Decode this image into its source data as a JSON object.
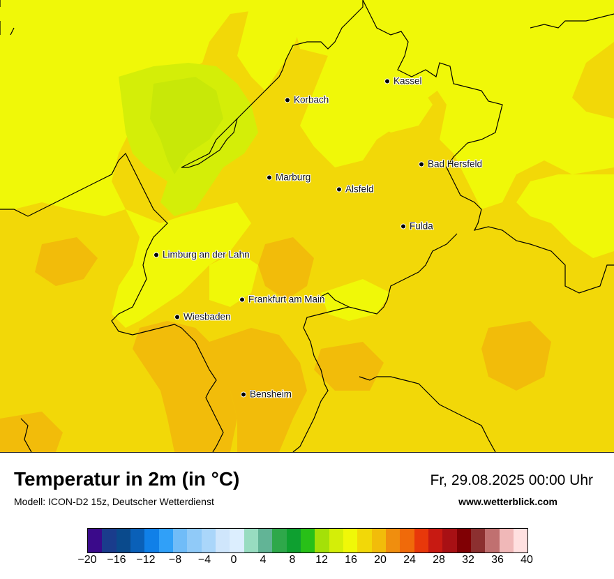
{
  "map": {
    "cities": [
      {
        "name": "Kassel"
      },
      {
        "name": "Korbach"
      },
      {
        "name": "Bad Hersfeld"
      },
      {
        "name": "Marburg"
      },
      {
        "name": "Alsfeld"
      },
      {
        "name": "Fulda"
      },
      {
        "name": "Limburg an der Lahn"
      },
      {
        "name": "Frankfurt am Main"
      },
      {
        "name": "Wiesbaden"
      },
      {
        "name": "Bensheim"
      }
    ]
  },
  "footer": {
    "title": "Temperatur in 2m (in °C)",
    "subtitle": "Modell: ICON-D2 15z, Deutscher Wetterdienst",
    "datetime": "Fr, 29.08.2025 00:00 Uhr",
    "website": "www.wetterblick.com"
  },
  "legend": {
    "min": -20,
    "max": 40,
    "colors": [
      "#3a0a8a",
      "#1a3c8c",
      "#0a4a8c",
      "#0a60b8",
      "#1080e8",
      "#30a0f8",
      "#70bcf8",
      "#90caf8",
      "#aad6fa",
      "#cfe6fc",
      "#dceefe",
      "#98dcc0",
      "#62b496",
      "#2ea84a",
      "#0ea030",
      "#28c018",
      "#a4e008",
      "#d4ee08",
      "#f0f808",
      "#f2d808",
      "#f2bc0a",
      "#f08e0e",
      "#f06a0a",
      "#e8380a",
      "#c81a12",
      "#a81014",
      "#800004",
      "#8c3030",
      "#c07070",
      "#f0b8b8",
      "#ffe0e0"
    ],
    "ticks": [
      "−20",
      "−16",
      "−12",
      "−8",
      "−4",
      "0",
      "4",
      "8",
      "12",
      "16",
      "20",
      "24",
      "28",
      "32",
      "36",
      "40"
    ]
  }
}
